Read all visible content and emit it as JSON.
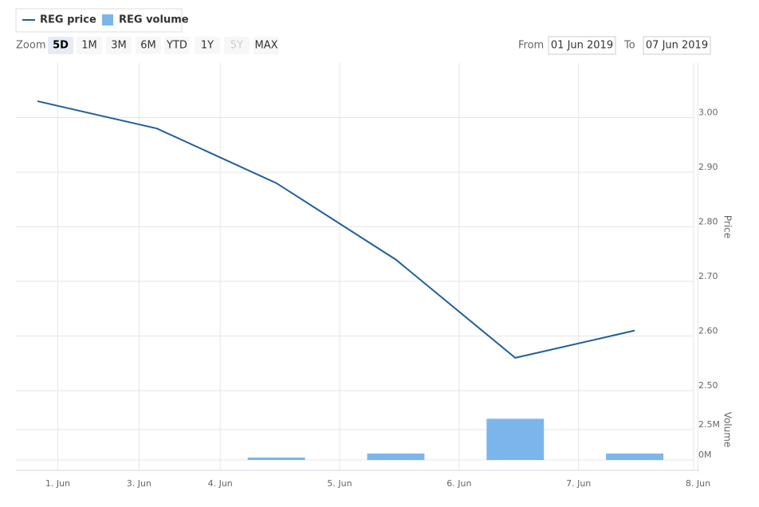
{
  "legend": {
    "items": [
      "REG price",
      "REG volume"
    ]
  },
  "zoom": {
    "label": "Zoom",
    "buttons": [
      "5D",
      "1M",
      "3M",
      "6M",
      "YTD",
      "1Y",
      "5Y",
      "MAX"
    ],
    "selected": 0,
    "disabled": [
      6
    ]
  },
  "range": {
    "from_label": "From",
    "from": "01 Jun 2019",
    "to_label": "To",
    "to": "07 Jun 2019"
  },
  "chart_data": [
    {
      "type": "line",
      "axis_title": "Price",
      "grid": true,
      "x": [
        0,
        1,
        2,
        3,
        4,
        5
      ],
      "xlim": [
        -0.18,
        5.54
      ],
      "ylim": [
        2.5,
        3.1
      ],
      "yticks": [
        {
          "value": 2.5,
          "label": "2.50"
        },
        {
          "value": 2.6,
          "label": "2.60"
        },
        {
          "value": 2.7,
          "label": "2.70"
        },
        {
          "value": 2.8,
          "label": "2.80"
        },
        {
          "value": 2.9,
          "label": "2.90"
        },
        {
          "value": 3.0,
          "label": "3.00"
        }
      ],
      "series": [
        {
          "name": "REG price",
          "color": "#215f9a",
          "values": [
            3.03,
            2.98,
            2.88,
            2.74,
            2.56,
            2.61
          ]
        }
      ]
    },
    {
      "type": "bar",
      "axis_title": "Volume",
      "grid": true,
      "x": [
        0,
        1,
        2,
        3,
        4,
        5
      ],
      "xlim": [
        -0.18,
        5.54
      ],
      "xticks": [
        {
          "value": 0.17,
          "label": "1. Jun"
        },
        {
          "value": 0.85,
          "label": "3. Jun"
        },
        {
          "value": 1.53,
          "label": "4. Jun"
        },
        {
          "value": 2.53,
          "label": "5. Jun"
        },
        {
          "value": 3.53,
          "label": "6. Jun"
        },
        {
          "value": 4.53,
          "label": "7. Jun"
        },
        {
          "value": 5.53,
          "label": "8. Jun"
        }
      ],
      "ylim": [
        0,
        5000000
      ],
      "yticks": [
        {
          "value": 0,
          "label": "0M"
        },
        {
          "value": 2500000,
          "label": "2.5M"
        }
      ],
      "series": [
        {
          "name": "REG volume",
          "color": "#7cb5ec",
          "values": [
            null,
            null,
            200000,
            530000,
            3400000,
            530000
          ]
        }
      ]
    }
  ]
}
